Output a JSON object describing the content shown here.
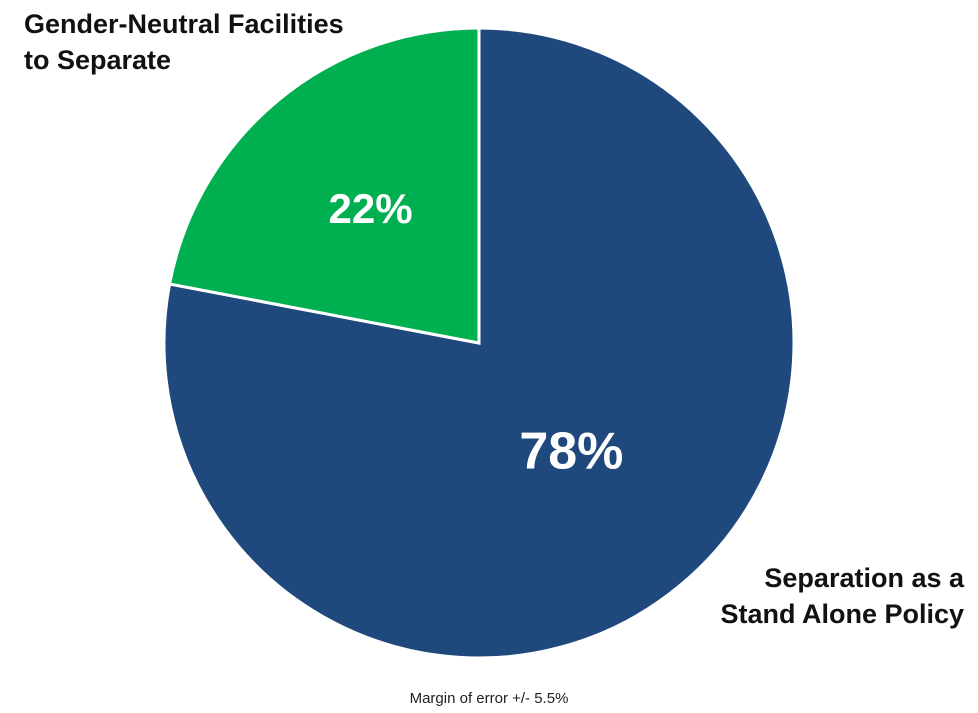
{
  "chart_data": {
    "type": "pie",
    "slices": [
      {
        "label": "Separation as a\nStand Alone Policy",
        "value": 78,
        "value_label": "78%",
        "color": "#1f497d"
      },
      {
        "label": "Gender-Neutral Facilities\nto Separate",
        "value": 22,
        "value_label": "22%",
        "color": "#00b050"
      }
    ],
    "start_angle_deg": 0,
    "direction": "clockwise"
  },
  "footnote": "Margin of error +/- 5.5%"
}
